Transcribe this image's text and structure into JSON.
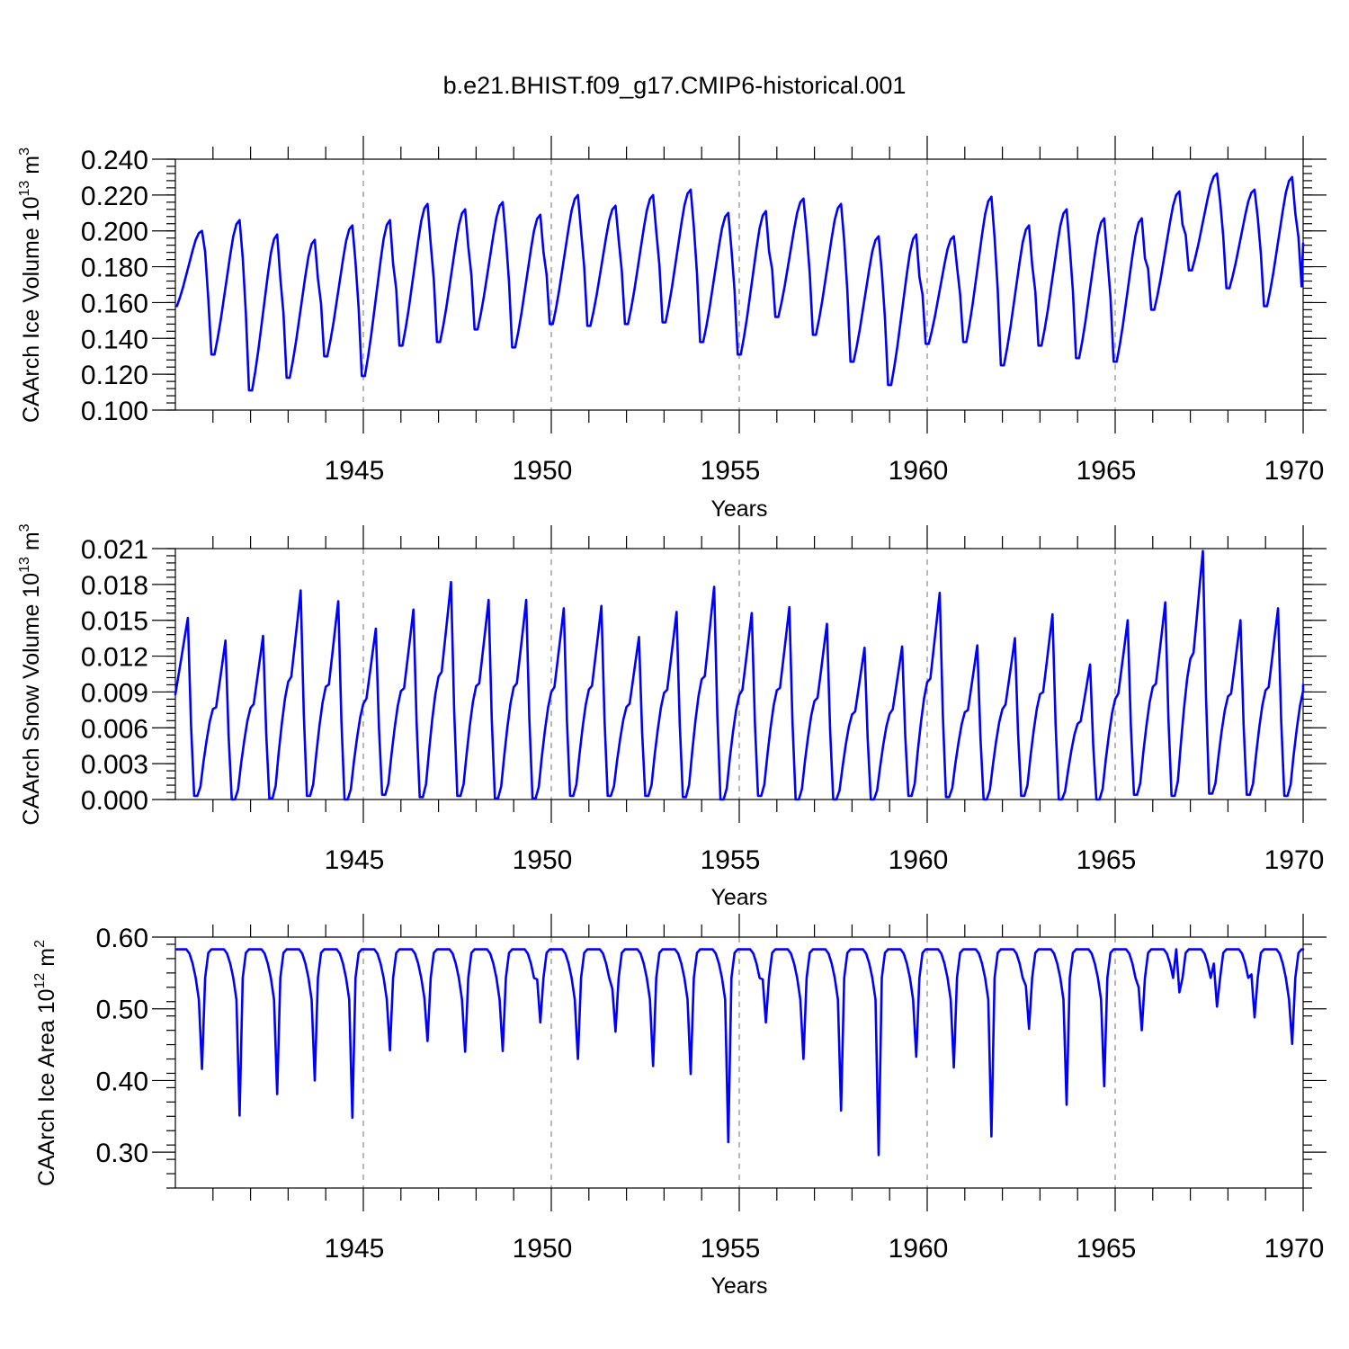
{
  "figure_title": "b.e21.BHIST.f09_g17.CMIP6-historical.001",
  "colors": {
    "series": "#0000ff",
    "axes": "#000000",
    "grid": "#888888"
  },
  "chart_data": [
    {
      "type": "line",
      "ylabel": "CAArch Ice Volume 10",
      "ylabel_exp": "13",
      "ylabel_unit": "m",
      "ylabel_unit_exp": "3",
      "xlabel": "Years",
      "xlim": [
        1940.0,
        1970.0
      ],
      "ylim": [
        0.1,
        0.24
      ],
      "x_ticks": [
        1945,
        1950,
        1955,
        1960,
        1965,
        1970
      ],
      "x_tick_labels": [
        "1945",
        "1950",
        "1955",
        "1960",
        "1965",
        "1970"
      ],
      "y_ticks": [
        0.1,
        0.12,
        0.14,
        0.16,
        0.18,
        0.2,
        0.22,
        0.24
      ],
      "y_tick_labels": [
        "0.100",
        "0.120",
        "0.140",
        "0.160",
        "0.180",
        "0.200",
        "0.220",
        "0.240"
      ],
      "grid_x": [
        1945,
        1950,
        1955,
        1960,
        1965
      ],
      "series": [
        {
          "name": "CAArch Ice Volume",
          "annual_max": [
            0.2,
            0.206,
            0.198,
            0.195,
            0.203,
            0.206,
            0.215,
            0.212,
            0.216,
            0.209,
            0.22,
            0.214,
            0.22,
            0.223,
            0.21,
            0.211,
            0.218,
            0.215,
            0.197,
            0.198,
            0.197,
            0.219,
            0.203,
            0.212,
            0.207,
            0.207,
            0.222,
            0.232,
            0.223,
            0.23
          ],
          "annual_min": [
            0.131,
            0.111,
            0.118,
            0.13,
            0.119,
            0.136,
            0.138,
            0.145,
            0.135,
            0.148,
            0.147,
            0.148,
            0.149,
            0.138,
            0.131,
            0.152,
            0.142,
            0.127,
            0.114,
            0.137,
            0.138,
            0.125,
            0.136,
            0.129,
            0.127,
            0.156,
            0.178,
            0.168,
            0.158,
            0.169
          ],
          "end_value": 0.193
        }
      ]
    },
    {
      "type": "line",
      "ylabel": "CAArch Snow Volume 10",
      "ylabel_exp": "13",
      "ylabel_unit": "m",
      "ylabel_unit_exp": "3",
      "xlabel": "Years",
      "xlim": [
        1940.0,
        1970.0
      ],
      "ylim": [
        0.0,
        0.021
      ],
      "x_ticks": [
        1945,
        1950,
        1955,
        1960,
        1965,
        1970
      ],
      "x_tick_labels": [
        "1945",
        "1950",
        "1955",
        "1960",
        "1965",
        "1970"
      ],
      "y_ticks": [
        0.0,
        0.003,
        0.006,
        0.009,
        0.012,
        0.015,
        0.018,
        0.021
      ],
      "y_tick_labels": [
        "0.000",
        "0.003",
        "0.006",
        "0.009",
        "0.012",
        "0.015",
        "0.018",
        "0.021"
      ],
      "grid_x": [
        1945,
        1950,
        1955,
        1960,
        1965
      ],
      "series": [
        {
          "name": "CAArch Snow Volume",
          "annual_max": [
            0.0152,
            0.0133,
            0.0137,
            0.0175,
            0.0166,
            0.0143,
            0.0159,
            0.0182,
            0.0167,
            0.0167,
            0.016,
            0.0162,
            0.0136,
            0.0157,
            0.0178,
            0.0156,
            0.0161,
            0.0147,
            0.0127,
            0.0128,
            0.0173,
            0.0129,
            0.0135,
            0.0155,
            0.0113,
            0.015,
            0.0165,
            0.0208,
            0.015,
            0.016
          ],
          "annual_min": [
            0.0003,
            0.0,
            0.0001,
            0.0003,
            0.0,
            0.0004,
            0.0002,
            0.0003,
            0.0001,
            0.0001,
            0.0003,
            0.0003,
            0.0003,
            0.0002,
            0.0,
            0.0003,
            0.0,
            0.0,
            0.0,
            0.0003,
            0.0002,
            0.0,
            0.0003,
            0.0,
            0.0,
            0.0004,
            0.0003,
            0.0005,
            0.0004,
            0.0003
          ],
          "start_value": 0.0088,
          "end_value": 0.0096
        }
      ]
    },
    {
      "type": "line",
      "ylabel": "CAArch Ice Area 10",
      "ylabel_exp": "12",
      "ylabel_unit": "m",
      "ylabel_unit_exp": "2",
      "xlabel": "Years",
      "xlim": [
        1940.0,
        1970.0
      ],
      "ylim": [
        0.25,
        0.6
      ],
      "x_ticks": [
        1945,
        1950,
        1955,
        1960,
        1965,
        1970
      ],
      "x_tick_labels": [
        "1945",
        "1950",
        "1955",
        "1960",
        "1965",
        "1970"
      ],
      "y_ticks": [
        0.3,
        0.4,
        0.5,
        0.6
      ],
      "y_tick_labels": [
        "0.30",
        "0.40",
        "0.50",
        "0.60"
      ],
      "grid_x": [
        1945,
        1950,
        1955,
        1960,
        1965
      ],
      "series": [
        {
          "name": "CAArch Ice Area",
          "plateau": 0.583,
          "annual_min": [
            0.416,
            0.351,
            0.381,
            0.4,
            0.348,
            0.442,
            0.455,
            0.44,
            0.441,
            0.481,
            0.43,
            0.468,
            0.42,
            0.409,
            0.314,
            0.481,
            0.43,
            0.358,
            0.296,
            0.433,
            0.418,
            0.322,
            0.472,
            0.366,
            0.392,
            0.47,
            0.523,
            0.503,
            0.488,
            0.451
          ]
        }
      ]
    }
  ]
}
